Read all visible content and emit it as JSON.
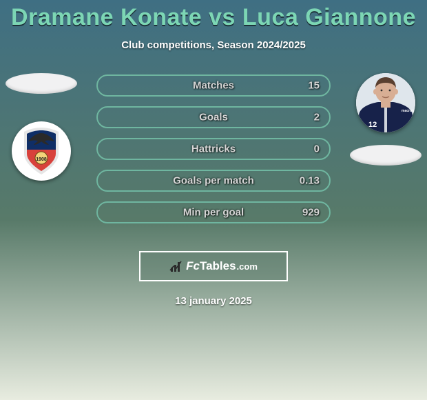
{
  "background": {
    "top_color": "#3f6f83",
    "mid_color": "#587a69",
    "bottom_color": "#e8ece0"
  },
  "title": {
    "text": "Dramane Konate vs Luca Giannone",
    "color": "#7cd6b4",
    "fontsize": 34
  },
  "subtitle": "Club competitions, Season 2024/2025",
  "left": {
    "ellipse_color": "#f1f1f2",
    "crest": {
      "shield_top": "#0f2e66",
      "shield_bottom": "#d8413b",
      "outline": "#e6e6e6",
      "eagle": "#2a2a2a",
      "year": "1908"
    }
  },
  "right": {
    "ellipse_color": "#f1f1f2",
    "player": {
      "bg": "#dfe6ec",
      "skin": "#d8ae94",
      "hair": "#5a4030",
      "jacket": "#17224a",
      "zip": "#cfd3da",
      "number": "12",
      "sponsor": "macron"
    }
  },
  "bars": {
    "border_color": "#6fb6a0",
    "label_color": "#d6d6d6",
    "value_color": "#d6d6d6",
    "items": [
      {
        "label": "Matches",
        "value": "15"
      },
      {
        "label": "Goals",
        "value": "2"
      },
      {
        "label": "Hattricks",
        "value": "0"
      },
      {
        "label": "Goals per match",
        "value": "0.13"
      },
      {
        "label": "Min per goal",
        "value": "929"
      }
    ]
  },
  "brand": {
    "box_border": "#ffffff",
    "icon_color": "#2b2b2b",
    "fc": "Fc",
    "tables": "Tables",
    "dotcom": ".com"
  },
  "date": "13 january 2025"
}
